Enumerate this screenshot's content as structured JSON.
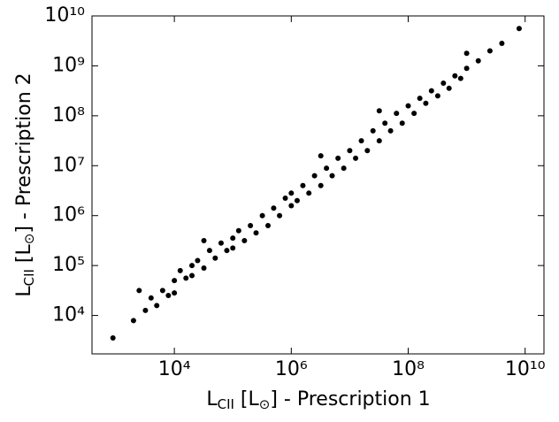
{
  "chart_data": {
    "type": "scatter",
    "xlabel": [
      "L",
      "CII",
      " [L",
      "⊙",
      "] - Prescription 1"
    ],
    "ylabel": [
      "L",
      "CII",
      " [L",
      "⊙",
      "] - Prescription 2"
    ],
    "xscale": "log",
    "yscale": "log",
    "color": "#000000",
    "xlim": [
      390,
      21000000000.0
    ],
    "ylim": [
      1700,
      10000000000.0
    ],
    "xticks": [
      {
        "value": 10000.0,
        "label": "10⁴"
      },
      {
        "value": 1000000.0,
        "label": "10⁶"
      },
      {
        "value": 100000000.0,
        "label": "10⁸"
      },
      {
        "value": 10000000000.0,
        "label": "10¹⁰"
      }
    ],
    "yticks": [
      {
        "value": 10000.0,
        "label": "10⁴"
      },
      {
        "value": 100000.0,
        "label": "10⁵"
      },
      {
        "value": 1000000.0,
        "label": "10⁶"
      },
      {
        "value": 10000000.0,
        "label": "10⁷"
      },
      {
        "value": 100000000.0,
        "label": "10⁸"
      },
      {
        "value": 1000000000.0,
        "label": "10⁹"
      },
      {
        "value": 10000000000.0,
        "label": "10¹⁰"
      }
    ],
    "x": [
      890,
      2000.0,
      3200.0,
      4000.0,
      5000.0,
      6300.0,
      7900.0,
      10000.0,
      10000.0,
      12600.0,
      15800.0,
      20000.0,
      20000.0,
      25000.0,
      32000.0,
      40000.0,
      50000.0,
      63000.0,
      79000.0,
      100000.0,
      100000.0,
      126000.0,
      158000.0,
      200000.0,
      250000.0,
      320000.0,
      400000.0,
      500000.0,
      630000.0,
      790000.0,
      1000000.0,
      1000000.0,
      1260000.0,
      1580000.0,
      2000000.0,
      2500000.0,
      3200000.0,
      4000000.0,
      5000000.0,
      6300000.0,
      7900000.0,
      10000000.0,
      12600000.0,
      15800000.0,
      20000000.0,
      25000000.0,
      32000000.0,
      40000000.0,
      50000000.0,
      63000000.0,
      79000000.0,
      100000000.0,
      126000000.0,
      158000000.0,
      200000000.0,
      250000000.0,
      320000000.0,
      400000000.0,
      500000000.0,
      630000000.0,
      790000000.0,
      1000000000.0,
      1580000000.0,
      2500000000.0,
      4000000000.0,
      7900000000.0,
      2500.0,
      32000.0,
      3200000.0,
      32000000.0,
      1000000000.0
    ],
    "values": [
      3550.0,
      7900.0,
      12600.0,
      22400.0,
      15800.0,
      31600.0,
      25100.0,
      50000.0,
      28200.0,
      79000.0,
      56000.0,
      100000.0,
      63000.0,
      126000.0,
      89000.0,
      200000.0,
      141000.0,
      282000.0,
      200000.0,
      355000.0,
      224000.0,
      500000.0,
      316000.0,
      630000.0,
      450000.0,
      1000000.0,
      630000.0,
      1410000.0,
      1000000.0,
      2240000.0,
      1580000.0,
      2820000.0,
      2000000.0,
      4000000.0,
      2820000.0,
      6300000.0,
      4000000.0,
      8900000.0,
      6300000.0,
      14100000.0,
      8900000.0,
      20000000.0,
      14100000.0,
      31600000.0,
      20000000.0,
      50000000.0,
      31600000.0,
      71000000.0,
      50000000.0,
      112000000.0,
      71000000.0,
      158000000.0,
      112000000.0,
      224000000.0,
      178000000.0,
      316000000.0,
      250000000.0,
      450000000.0,
      355000000.0,
      630000000.0,
      560000000.0,
      890000000.0,
      1260000000.0,
      2000000000.0,
      2820000000.0,
      5600000000.0,
      31600.0,
      316000.0,
      15800000.0,
      126000000.0,
      1780000000.0
    ]
  }
}
